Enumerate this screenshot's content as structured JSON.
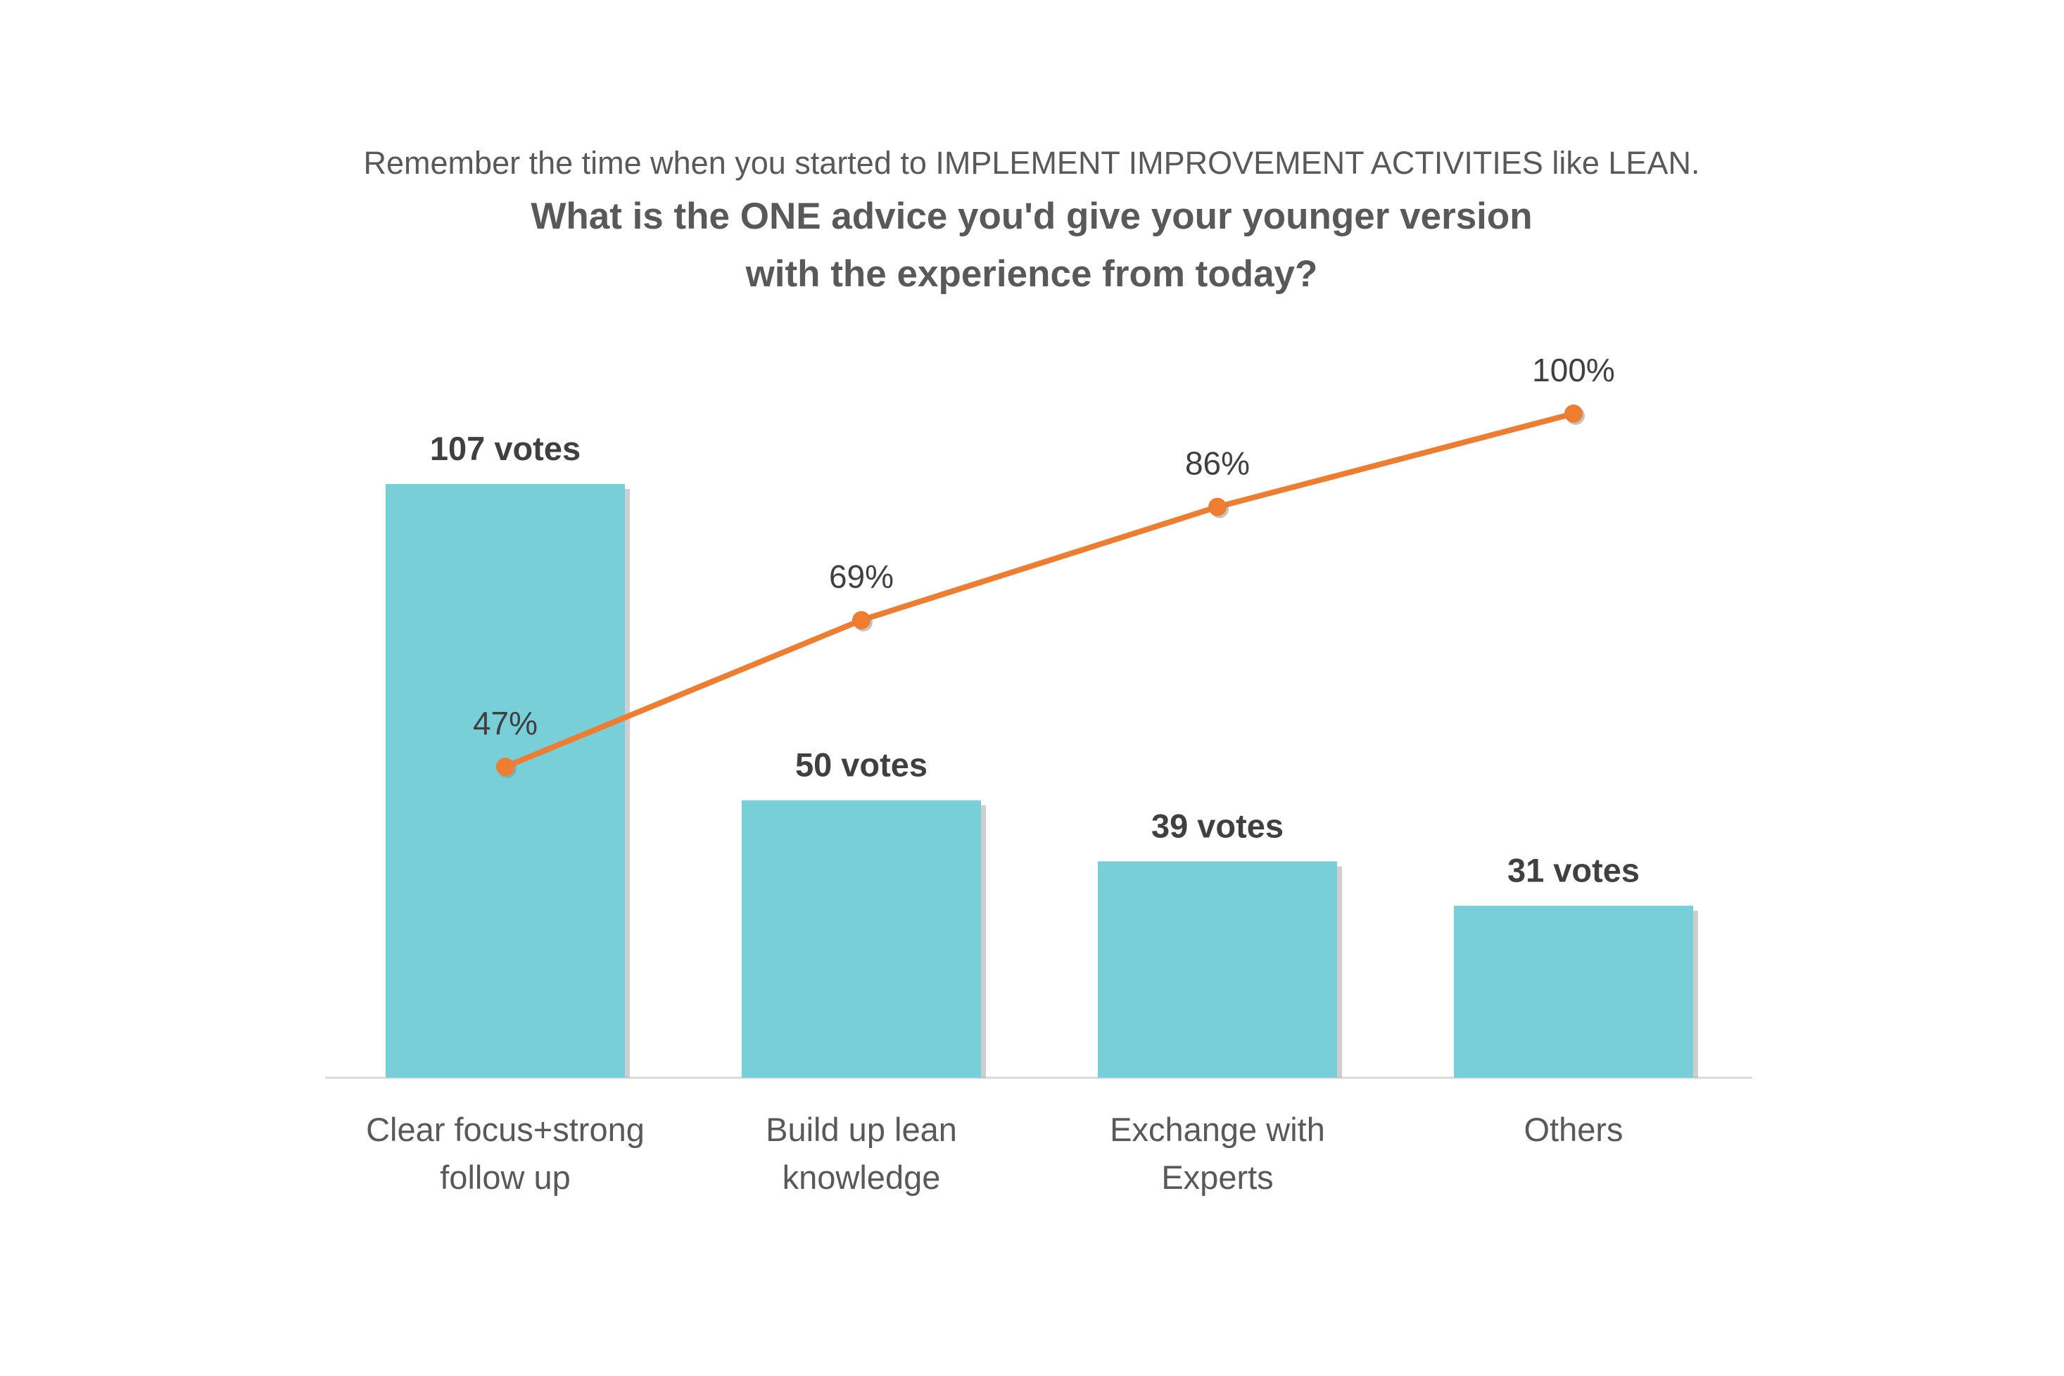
{
  "chart_data": {
    "type": "bar",
    "subtitle": "Remember the time when you started to IMPLEMENT IMPROVEMENT ACTIVITIES like LEAN.",
    "title_lines": [
      "What is the ONE advice you'd give your younger version",
      "with the experience from today?"
    ],
    "categories": [
      [
        "Clear focus+strong",
        "follow up"
      ],
      [
        "Build up lean",
        "knowledge"
      ],
      [
        "Exchange with",
        "Experts"
      ],
      [
        "Others"
      ]
    ],
    "values": [
      107,
      50,
      39,
      31
    ],
    "value_labels": [
      "107 votes",
      "50 votes",
      "39 votes",
      "31 votes"
    ],
    "cumulative_percent": [
      47,
      69,
      86,
      100
    ],
    "cumulative_labels": [
      "47%",
      "69%",
      "86%",
      "100%"
    ],
    "colors": {
      "bar": "#78CFD7",
      "bar_shadow": "#A6A6A6",
      "line": "#ED7D31",
      "axis": "#D9D9D9"
    },
    "grid": false,
    "legend": "none"
  }
}
